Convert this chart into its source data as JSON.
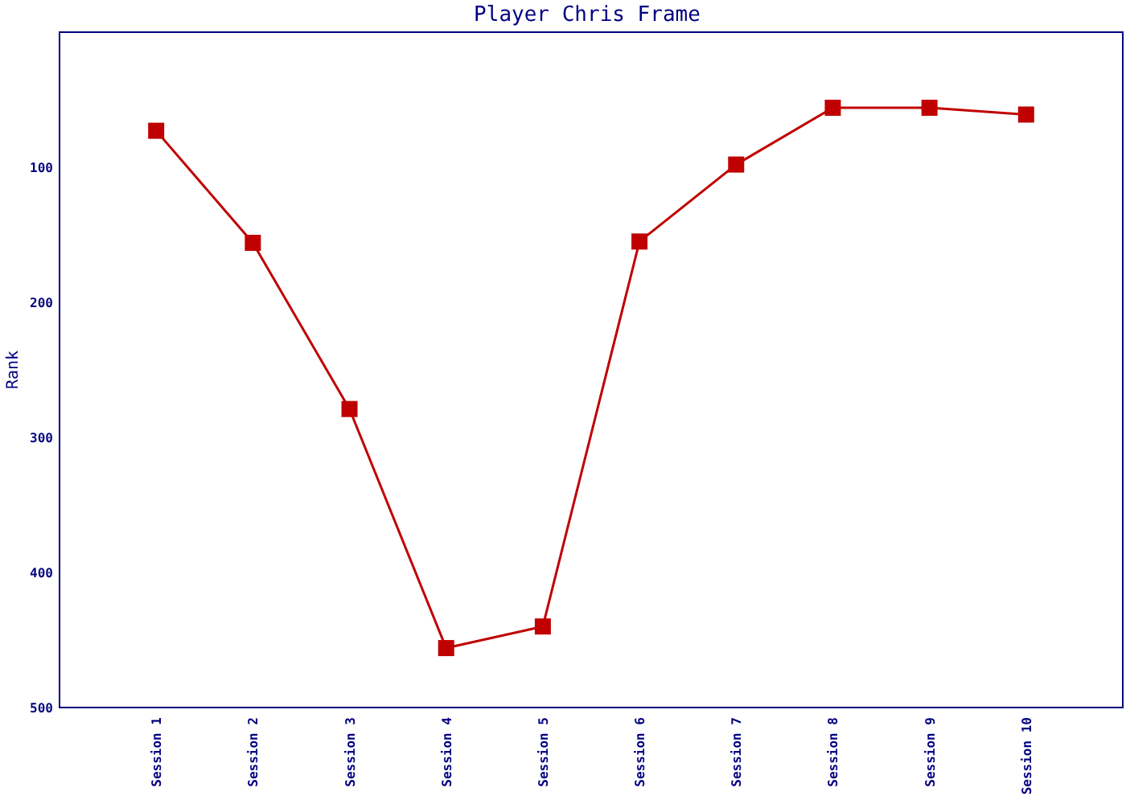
{
  "chart_data": {
    "type": "line",
    "title": "Player Chris Frame",
    "ylabel": "Rank",
    "categories": [
      "Session 1",
      "Session 2",
      "Session 3",
      "Session 4",
      "Session 5",
      "Session 6",
      "Session 7",
      "Session 8",
      "Session 9",
      "Session 10"
    ],
    "series": [
      {
        "color": "#c00000",
        "values": [
          73,
          156,
          279,
          456,
          440,
          155,
          98,
          56,
          56,
          61
        ]
      }
    ],
    "ylim": [
      500,
      0
    ],
    "yticks": [
      100,
      200,
      300,
      400,
      500
    ],
    "marker": "square",
    "line_style": "solid",
    "grid": false
  }
}
